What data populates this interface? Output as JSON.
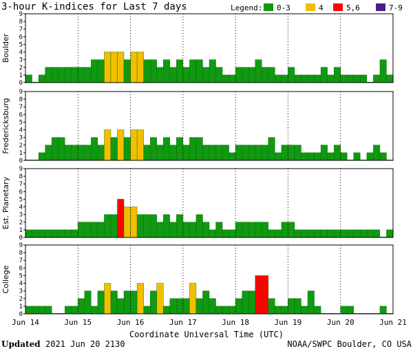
{
  "page_title": "3-hour K-indices for Last 7 days",
  "legend": {
    "label": "Legend:",
    "items": [
      {
        "label": "0-3",
        "color": "#119911"
      },
      {
        "label": "4",
        "color": "#f2bf00"
      },
      {
        "label": "5,6",
        "color": "#ff0000"
      },
      {
        "label": "7-9",
        "color": "#4b1b8c"
      }
    ]
  },
  "footer": {
    "updated_label": "Updated",
    "updated_value": "2021 Jun 20 2130",
    "source": "NOAA/SWPC Boulder, CO USA"
  },
  "chart_data": {
    "type": "bar",
    "xlabel": "Coordinate Universal Time (UTC)",
    "x_ticks": [
      "Jun 14",
      "Jun 15",
      "Jun 16",
      "Jun 17",
      "Jun 18",
      "Jun 19",
      "Jun 20",
      "Jun 21"
    ],
    "ylim": [
      0,
      9
    ],
    "y_ticks": [
      "0",
      "1",
      "2",
      "3",
      "4",
      "5",
      "6",
      "7",
      "8",
      "9"
    ],
    "bins_per_day": 8,
    "panels": [
      {
        "name": "Boulder",
        "values": [
          1,
          0,
          1,
          2,
          2,
          2,
          2,
          2,
          2,
          2,
          3,
          3,
          4,
          4,
          4,
          3,
          4,
          4,
          3,
          3,
          2,
          3,
          2,
          3,
          2,
          3,
          3,
          2,
          3,
          2,
          1,
          1,
          2,
          2,
          2,
          3,
          2,
          2,
          1,
          1,
          2,
          1,
          1,
          1,
          1,
          2,
          1,
          2,
          1,
          1,
          1,
          1,
          0,
          1,
          3,
          1
        ]
      },
      {
        "name": "Fredericksburg",
        "values": [
          0,
          0,
          1,
          2,
          3,
          3,
          2,
          2,
          2,
          2,
          3,
          2,
          4,
          3,
          4,
          3,
          4,
          4,
          2,
          3,
          2,
          3,
          2,
          3,
          2,
          3,
          3,
          2,
          2,
          2,
          2,
          1,
          2,
          2,
          2,
          2,
          2,
          3,
          1,
          2,
          2,
          2,
          1,
          1,
          1,
          2,
          1,
          2,
          1,
          0,
          1,
          0,
          1,
          2,
          1,
          0
        ]
      },
      {
        "name": "Est. Planetary",
        "values": [
          1,
          1,
          1,
          1,
          1,
          1,
          1,
          1,
          2,
          2,
          2,
          2,
          3,
          3,
          5,
          4,
          4,
          3,
          3,
          3,
          2,
          3,
          2,
          3,
          2,
          2,
          3,
          2,
          1,
          2,
          1,
          1,
          2,
          2,
          2,
          2,
          2,
          1,
          1,
          2,
          2,
          1,
          1,
          1,
          1,
          1,
          1,
          1,
          1,
          1,
          1,
          1,
          1,
          1,
          0,
          1
        ]
      },
      {
        "name": "College",
        "values": [
          1,
          1,
          1,
          1,
          0,
          0,
          1,
          1,
          2,
          3,
          1,
          3,
          4,
          3,
          2,
          3,
          3,
          4,
          1,
          3,
          4,
          1,
          2,
          2,
          2,
          4,
          2,
          3,
          2,
          1,
          1,
          1,
          2,
          3,
          3,
          5,
          5,
          2,
          1,
          1,
          2,
          2,
          1,
          3,
          1,
          0,
          0,
          0,
          1,
          1,
          0,
          0,
          0,
          0,
          1,
          0
        ]
      }
    ]
  }
}
